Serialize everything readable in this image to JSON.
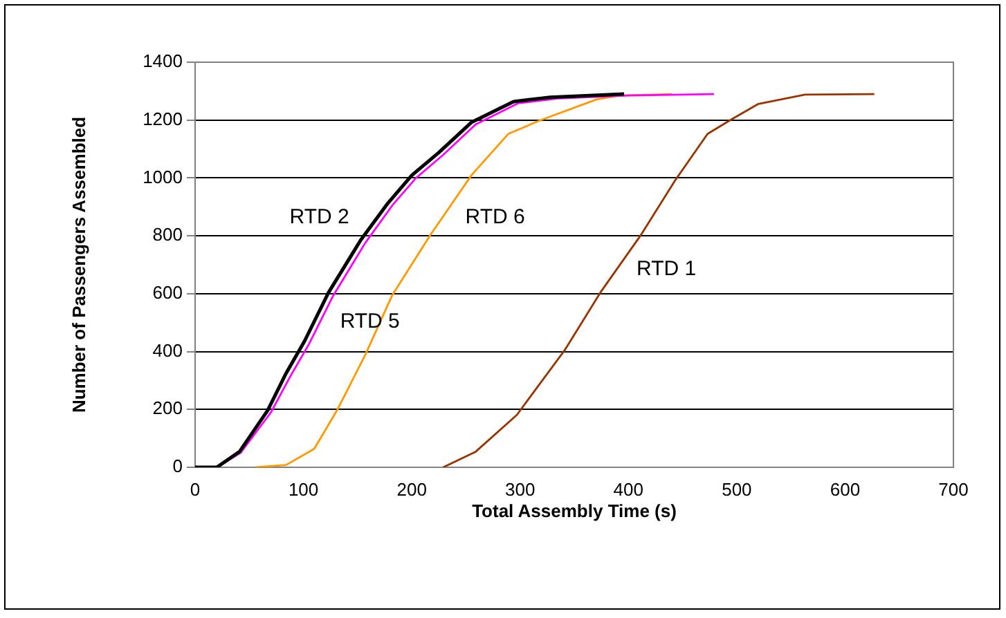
{
  "chart_data": {
    "type": "line",
    "xlabel": "Total Assembly Time (s)",
    "ylabel": "Number of Passengers Assembled",
    "xlim": [
      0,
      700
    ],
    "xticks": [
      0,
      100,
      200,
      300,
      400,
      500,
      600,
      700
    ],
    "ylim": [
      0,
      1400
    ],
    "yticks": [
      0,
      200,
      400,
      600,
      800,
      1000,
      1200,
      1400
    ],
    "grid": "y",
    "legend": false,
    "marker": "none",
    "line_style": "solid",
    "series": [
      {
        "name": "RTD 2",
        "color": "#000000",
        "x": [
          0,
          20,
          41,
          67,
          84,
          101,
          123,
          153,
          178,
          200,
          225,
          255,
          294,
          328,
          396
        ],
        "values": [
          0,
          0,
          54,
          197,
          325,
          436,
          603,
          786,
          913,
          1009,
          1088,
          1192,
          1264,
          1279,
          1290
        ]
      },
      {
        "name": "RTD 5",
        "color": "#ff00ff",
        "x": [
          0,
          20,
          42,
          70,
          88,
          105,
          127,
          157,
          182,
          204,
          229,
          259,
          298,
          335,
          400,
          479
        ],
        "values": [
          0,
          0,
          50,
          190,
          315,
          425,
          590,
          775,
          905,
          1000,
          1080,
          1185,
          1258,
          1275,
          1285,
          1290
        ]
      },
      {
        "name": "RTD 6",
        "color": "#ff9900",
        "x": [
          56,
          84,
          110,
          131,
          157,
          182,
          217,
          255,
          289,
          319,
          371,
          392,
          440
        ],
        "values": [
          0,
          8,
          64,
          197,
          388,
          595,
          802,
          1009,
          1152,
          1200,
          1272,
          1285,
          1290
        ]
      },
      {
        "name": "RTD 1",
        "color": "#993300",
        "x": [
          229,
          259,
          297,
          341,
          375,
          411,
          443,
          473,
          494,
          520,
          563,
          627
        ],
        "values": [
          0,
          54,
          181,
          404,
          609,
          800,
          991,
          1152,
          1200,
          1256,
          1288,
          1290
        ]
      }
    ]
  }
}
